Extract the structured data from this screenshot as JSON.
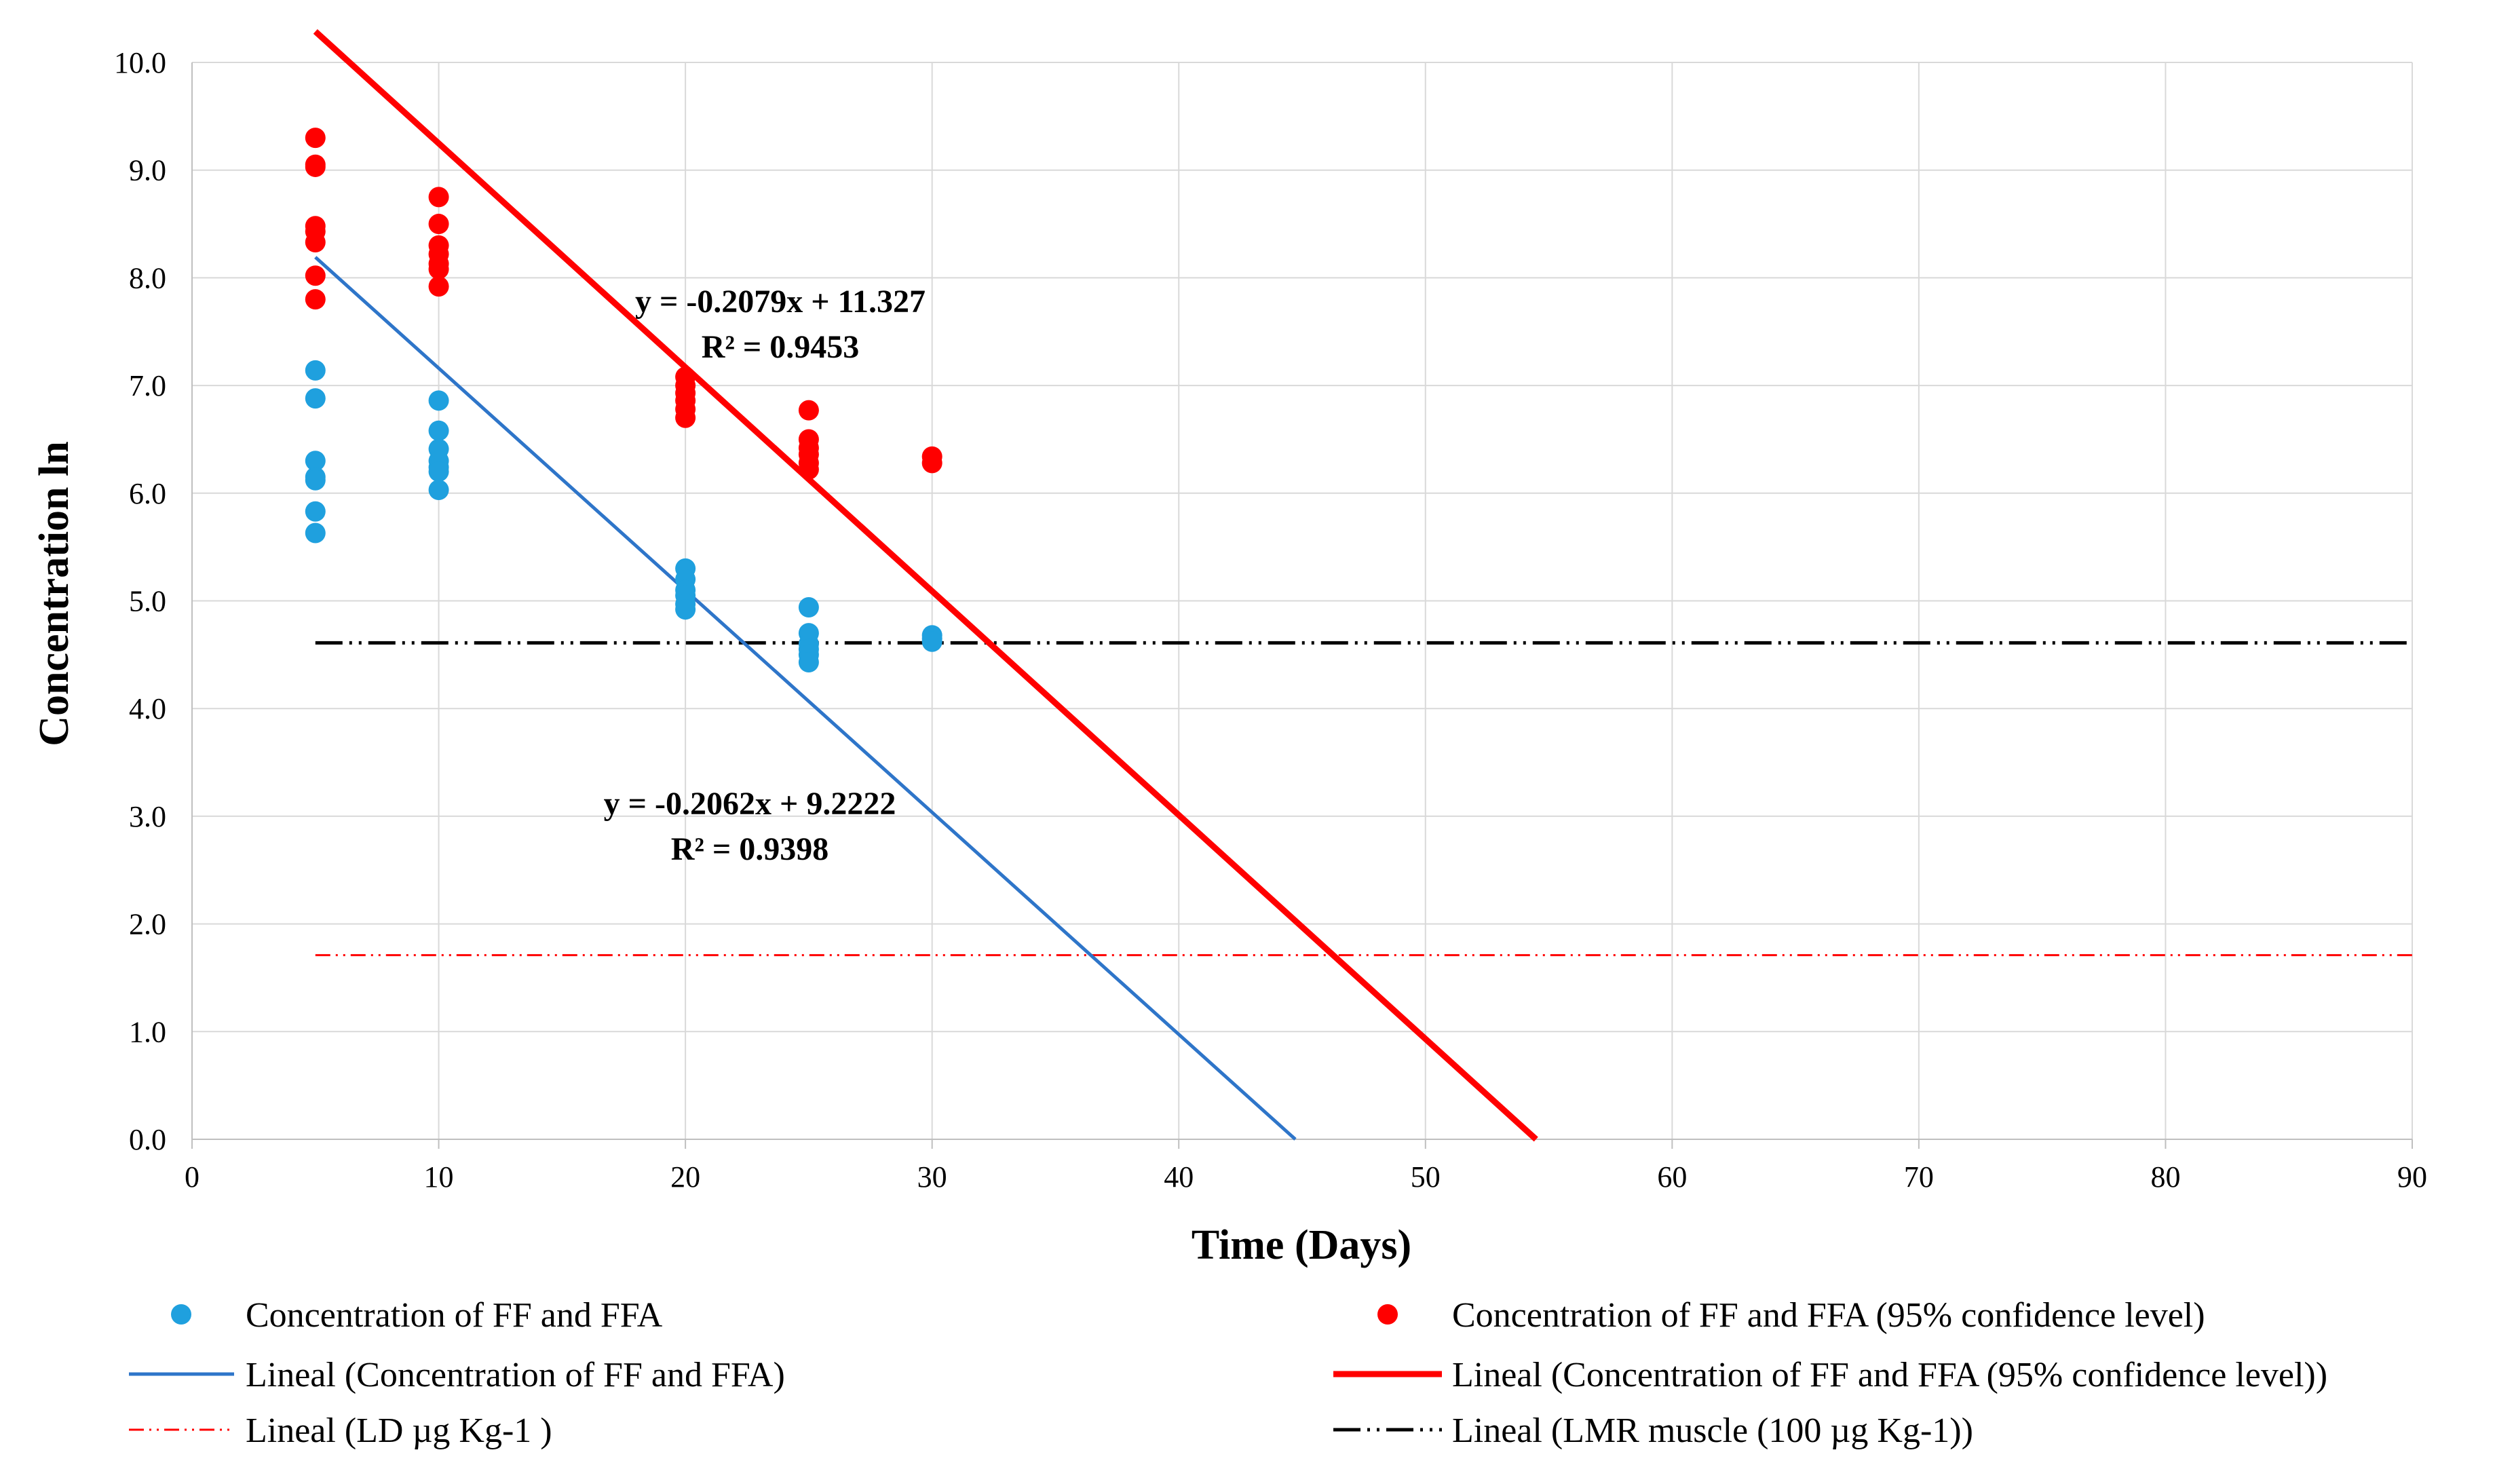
{
  "chart_data": {
    "type": "scatter",
    "title": "",
    "xlabel": "Time (Days)",
    "ylabel": "Concentration ln",
    "xlim": [
      0,
      90
    ],
    "ylim": [
      0,
      10
    ],
    "x_ticks": [
      "0",
      "10",
      "20",
      "30",
      "40",
      "50",
      "60",
      "70",
      "80",
      "90"
    ],
    "y_ticks": [
      "0.0",
      "1.0",
      "2.0",
      "3.0",
      "4.0",
      "5.0",
      "6.0",
      "7.0",
      "8.0",
      "9.0",
      "10.0"
    ],
    "grid": true,
    "legend_position": "bottom",
    "series": [
      {
        "name": "Concentration of FF and FFA",
        "kind": "scatter",
        "color": "#1fa0de",
        "points": [
          {
            "x": 5,
            "y": 7.14
          },
          {
            "x": 5,
            "y": 6.88
          },
          {
            "x": 5,
            "y": 6.3
          },
          {
            "x": 5,
            "y": 6.15
          },
          {
            "x": 5,
            "y": 6.12
          },
          {
            "x": 5,
            "y": 5.83
          },
          {
            "x": 5,
            "y": 5.63
          },
          {
            "x": 10,
            "y": 6.86
          },
          {
            "x": 10,
            "y": 6.58
          },
          {
            "x": 10,
            "y": 6.41
          },
          {
            "x": 10,
            "y": 6.3
          },
          {
            "x": 10,
            "y": 6.24
          },
          {
            "x": 10,
            "y": 6.2
          },
          {
            "x": 10,
            "y": 6.03
          },
          {
            "x": 20,
            "y": 5.3
          },
          {
            "x": 20,
            "y": 5.2
          },
          {
            "x": 20,
            "y": 5.1
          },
          {
            "x": 20,
            "y": 5.05
          },
          {
            "x": 20,
            "y": 4.97
          },
          {
            "x": 20,
            "y": 4.92
          },
          {
            "x": 25,
            "y": 4.94
          },
          {
            "x": 25,
            "y": 4.7
          },
          {
            "x": 25,
            "y": 4.6
          },
          {
            "x": 25,
            "y": 4.55
          },
          {
            "x": 25,
            "y": 4.5
          },
          {
            "x": 25,
            "y": 4.43
          },
          {
            "x": 30,
            "y": 4.68
          },
          {
            "x": 30,
            "y": 4.65
          },
          {
            "x": 30,
            "y": 4.62
          }
        ]
      },
      {
        "name": "Concentration of FF and FFA (95% confidence level)",
        "kind": "scatter",
        "color": "#ff0000",
        "points": [
          {
            "x": 5,
            "y": 9.3
          },
          {
            "x": 5,
            "y": 9.05
          },
          {
            "x": 5,
            "y": 9.03
          },
          {
            "x": 5,
            "y": 8.48
          },
          {
            "x": 5,
            "y": 8.43
          },
          {
            "x": 5,
            "y": 8.33
          },
          {
            "x": 5,
            "y": 8.02
          },
          {
            "x": 5,
            "y": 7.8
          },
          {
            "x": 10,
            "y": 8.75
          },
          {
            "x": 10,
            "y": 8.5
          },
          {
            "x": 10,
            "y": 8.3
          },
          {
            "x": 10,
            "y": 8.22
          },
          {
            "x": 10,
            "y": 8.13
          },
          {
            "x": 10,
            "y": 8.08
          },
          {
            "x": 10,
            "y": 7.92
          },
          {
            "x": 20,
            "y": 7.08
          },
          {
            "x": 20,
            "y": 7.0
          },
          {
            "x": 20,
            "y": 6.93
          },
          {
            "x": 20,
            "y": 6.86
          },
          {
            "x": 20,
            "y": 6.78
          },
          {
            "x": 20,
            "y": 6.7
          },
          {
            "x": 25,
            "y": 6.77
          },
          {
            "x": 25,
            "y": 6.5
          },
          {
            "x": 25,
            "y": 6.42
          },
          {
            "x": 25,
            "y": 6.36
          },
          {
            "x": 25,
            "y": 6.28
          },
          {
            "x": 25,
            "y": 6.22
          },
          {
            "x": 30,
            "y": 6.34
          },
          {
            "x": 30,
            "y": 6.28
          }
        ]
      },
      {
        "name": "Lineal (Concentration of FF and FFA)",
        "kind": "trendline",
        "color": "#2e75c9",
        "slope": -0.2062,
        "intercept": 9.2222,
        "x_range": [
          5,
          90
        ]
      },
      {
        "name": "Lineal (Concentration of FF and FFA (95% confidence level))",
        "kind": "trendline",
        "color": "#ff0000",
        "slope": -0.2079,
        "intercept": 11.327,
        "x_range": [
          5,
          90
        ]
      },
      {
        "name": "Lineal (LD µg Kg-1 )",
        "kind": "hline",
        "color": "#ff0000",
        "y": 1.71,
        "x_range": [
          5,
          90
        ],
        "dash": "dash-dot-dot"
      },
      {
        "name": "Lineal (LMR muscle (100 µg Kg-1))",
        "kind": "hline",
        "color": "#000000",
        "y": 4.61,
        "x_range": [
          5,
          90
        ],
        "dash": "dash-dot-dot"
      }
    ],
    "annotations": [
      {
        "line1": "y = -0.2079x + 11.327",
        "line2": "R² = 0.9453",
        "anchor_x": 23.8,
        "anchor_y": 7.9
      },
      {
        "line1": "y = -0.2062x + 9.2222",
        "line2": "R² = 0.9398",
        "anchor_x": 22.5,
        "anchor_y": 3.1
      }
    ]
  }
}
